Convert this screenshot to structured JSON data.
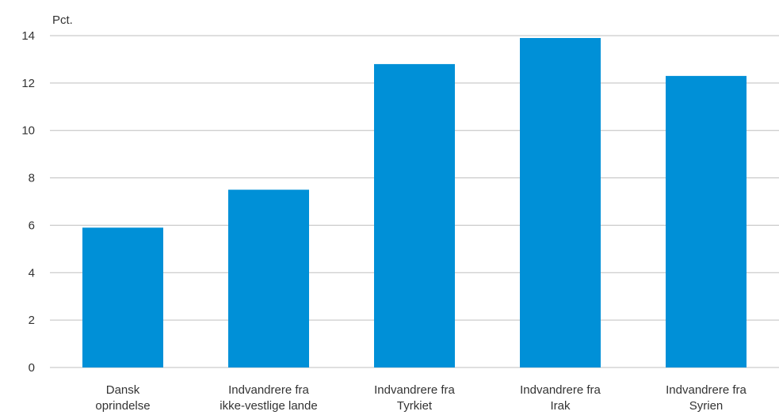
{
  "chart_data": {
    "type": "bar",
    "ylabel": "Pct.",
    "xlabel": "",
    "ylim": [
      0,
      14
    ],
    "yticks": [
      "0",
      "2",
      "4",
      "6",
      "8",
      "10",
      "12",
      "14"
    ],
    "grid": true,
    "categories": [
      [
        "Dansk",
        "oprindelse"
      ],
      [
        "Indvandrere fra",
        "ikke-vestlige lande"
      ],
      [
        "Indvandrere fra",
        "Tyrkiet"
      ],
      [
        "Indvandrere fra",
        "Irak"
      ],
      [
        "Indvandrere fra",
        "Syrien"
      ]
    ],
    "values": [
      5.9,
      7.5,
      12.8,
      13.9,
      12.3
    ],
    "bar_color": "#0090d7",
    "grid_color": "#bfbfbf"
  }
}
